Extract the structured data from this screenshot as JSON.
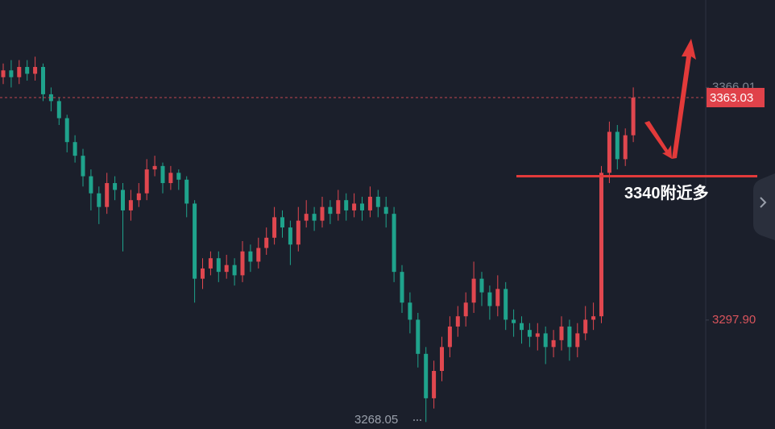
{
  "chart_data": {
    "type": "candlestick",
    "open": [
      3369,
      3371,
      3369,
      3372,
      3370,
      3372,
      3364,
      3362,
      3357,
      3350,
      3346,
      3340,
      3335,
      3331,
      3338,
      3336,
      3330,
      3333,
      3335,
      3342,
      3343,
      3338,
      3341,
      3339,
      3332,
      3310,
      3313,
      3316,
      3312,
      3314,
      3311,
      3318,
      3315,
      3319,
      3322,
      3328,
      3325,
      3320,
      3327,
      3329,
      3327,
      3331,
      3329,
      3333,
      3330,
      3332,
      3330,
      3334,
      3331,
      3329,
      3312,
      3303,
      3298,
      3288,
      3275,
      3283,
      3290,
      3296,
      3299,
      3303,
      3310,
      3306,
      3302,
      3307,
      3298,
      3297,
      3295,
      3293,
      3294,
      3290,
      3292,
      3296,
      3290,
      3294,
      3298,
      3299,
      3341,
      3353,
      3345,
      3352
    ],
    "high": [
      3373,
      3374,
      3374,
      3374,
      3375,
      3373,
      3366,
      3363,
      3358,
      3352,
      3348,
      3342,
      3337,
      3341,
      3340,
      3338,
      3336,
      3338,
      3345,
      3346,
      3344,
      3343,
      3342,
      3340,
      3333,
      3316,
      3318,
      3318,
      3317,
      3316,
      3321,
      3320,
      3322,
      3325,
      3331,
      3330,
      3327,
      3331,
      3333,
      3331,
      3334,
      3333,
      3336,
      3335,
      3335,
      3334,
      3337,
      3336,
      3334,
      3331,
      3314,
      3306,
      3300,
      3290,
      3286,
      3293,
      3299,
      3302,
      3306,
      3315,
      3312,
      3308,
      3311,
      3309,
      3301,
      3299,
      3297,
      3297,
      3296,
      3295,
      3299,
      3298,
      3297,
      3302,
      3303,
      3343,
      3356,
      3355,
      3354,
      3366.01
    ],
    "low": [
      3367,
      3366,
      3367,
      3368,
      3368,
      3362,
      3359,
      3355,
      3347,
      3344,
      3337,
      3330,
      3326,
      3329,
      3333,
      3318,
      3327,
      3331,
      3333,
      3340,
      3335,
      3336,
      3336,
      3328,
      3303,
      3307,
      3311,
      3309,
      3310,
      3308,
      3309,
      3312,
      3313,
      3317,
      3320,
      3322,
      3314,
      3318,
      3325,
      3324,
      3325,
      3326,
      3327,
      3327,
      3328,
      3327,
      3328,
      3328,
      3325,
      3309,
      3300,
      3294,
      3284,
      3268.05,
      3272,
      3280,
      3287,
      3293,
      3296,
      3300,
      3302,
      3298,
      3299,
      3295,
      3293,
      3291,
      3290,
      3289,
      3285,
      3287,
      3289,
      3286,
      3287,
      3292,
      3295,
      3297,
      3338,
      3342,
      3343,
      3350
    ],
    "close": [
      3371,
      3369,
      3372,
      3370,
      3372,
      3364,
      3362,
      3357,
      3350,
      3346,
      3340,
      3335,
      3331,
      3338,
      3336,
      3330,
      3333,
      3335,
      3342,
      3343,
      3338,
      3341,
      3339,
      3332,
      3310,
      3313,
      3316,
      3312,
      3314,
      3311,
      3318,
      3315,
      3319,
      3322,
      3328,
      3325,
      3320,
      3327,
      3329,
      3327,
      3331,
      3329,
      3333,
      3330,
      3332,
      3330,
      3334,
      3331,
      3329,
      3312,
      3303,
      3298,
      3288,
      3275,
      3283,
      3290,
      3296,
      3299,
      3303,
      3310,
      3306,
      3302,
      3307,
      3298,
      3297,
      3295,
      3293,
      3294,
      3290,
      3292,
      3296,
      3290,
      3294,
      3298,
      3299,
      3341,
      3353,
      3345,
      3352,
      3363.03
    ],
    "up_color": "#e0474f",
    "down_color": "#1fa38c",
    "ylim": [
      3266,
      3391.6
    ],
    "yticks": [
      3366.01,
      {
        "value": 3297.9,
        "label": "3297.90"
      }
    ],
    "last_price": 3363.03,
    "low_label": 3268.05,
    "annotation": {
      "text": "3340附近多",
      "value": 3340
    }
  }
}
